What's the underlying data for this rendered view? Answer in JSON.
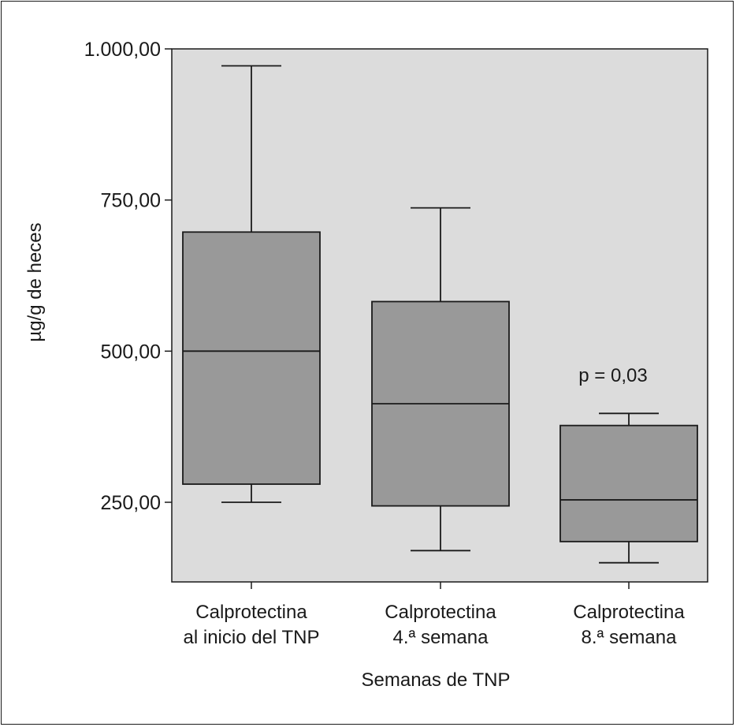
{
  "chart_data": {
    "type": "box",
    "xlabel": "Semanas de TNP",
    "ylabel": "µg/g de heces",
    "ylim": [
      120,
      1000
    ],
    "yticks": [
      {
        "value": 250,
        "label": "250,00"
      },
      {
        "value": 500,
        "label": "500,00"
      },
      {
        "value": 750,
        "label": "750,00"
      },
      {
        "value": 1000,
        "label": "1.000,00"
      }
    ],
    "categories": [
      [
        "Calprotectina",
        "al inicio del TNP"
      ],
      [
        "Calprotectina",
        "4.ª semana"
      ],
      [
        "Calprotectina",
        "8.ª semana"
      ]
    ],
    "boxes": [
      {
        "min": 250,
        "q1": 280,
        "median": 500,
        "q3": 697,
        "max": 972
      },
      {
        "min": 170,
        "q1": 244,
        "median": 413,
        "q3": 582,
        "max": 737
      },
      {
        "min": 150,
        "q1": 185,
        "median": 254,
        "q3": 377,
        "max": 397
      }
    ],
    "annotation": "p = 0,03",
    "grid": false,
    "colors": {
      "plot_bg": "#dcdcdc",
      "box_fill": "#999999",
      "line": "#1a1a1a"
    }
  }
}
